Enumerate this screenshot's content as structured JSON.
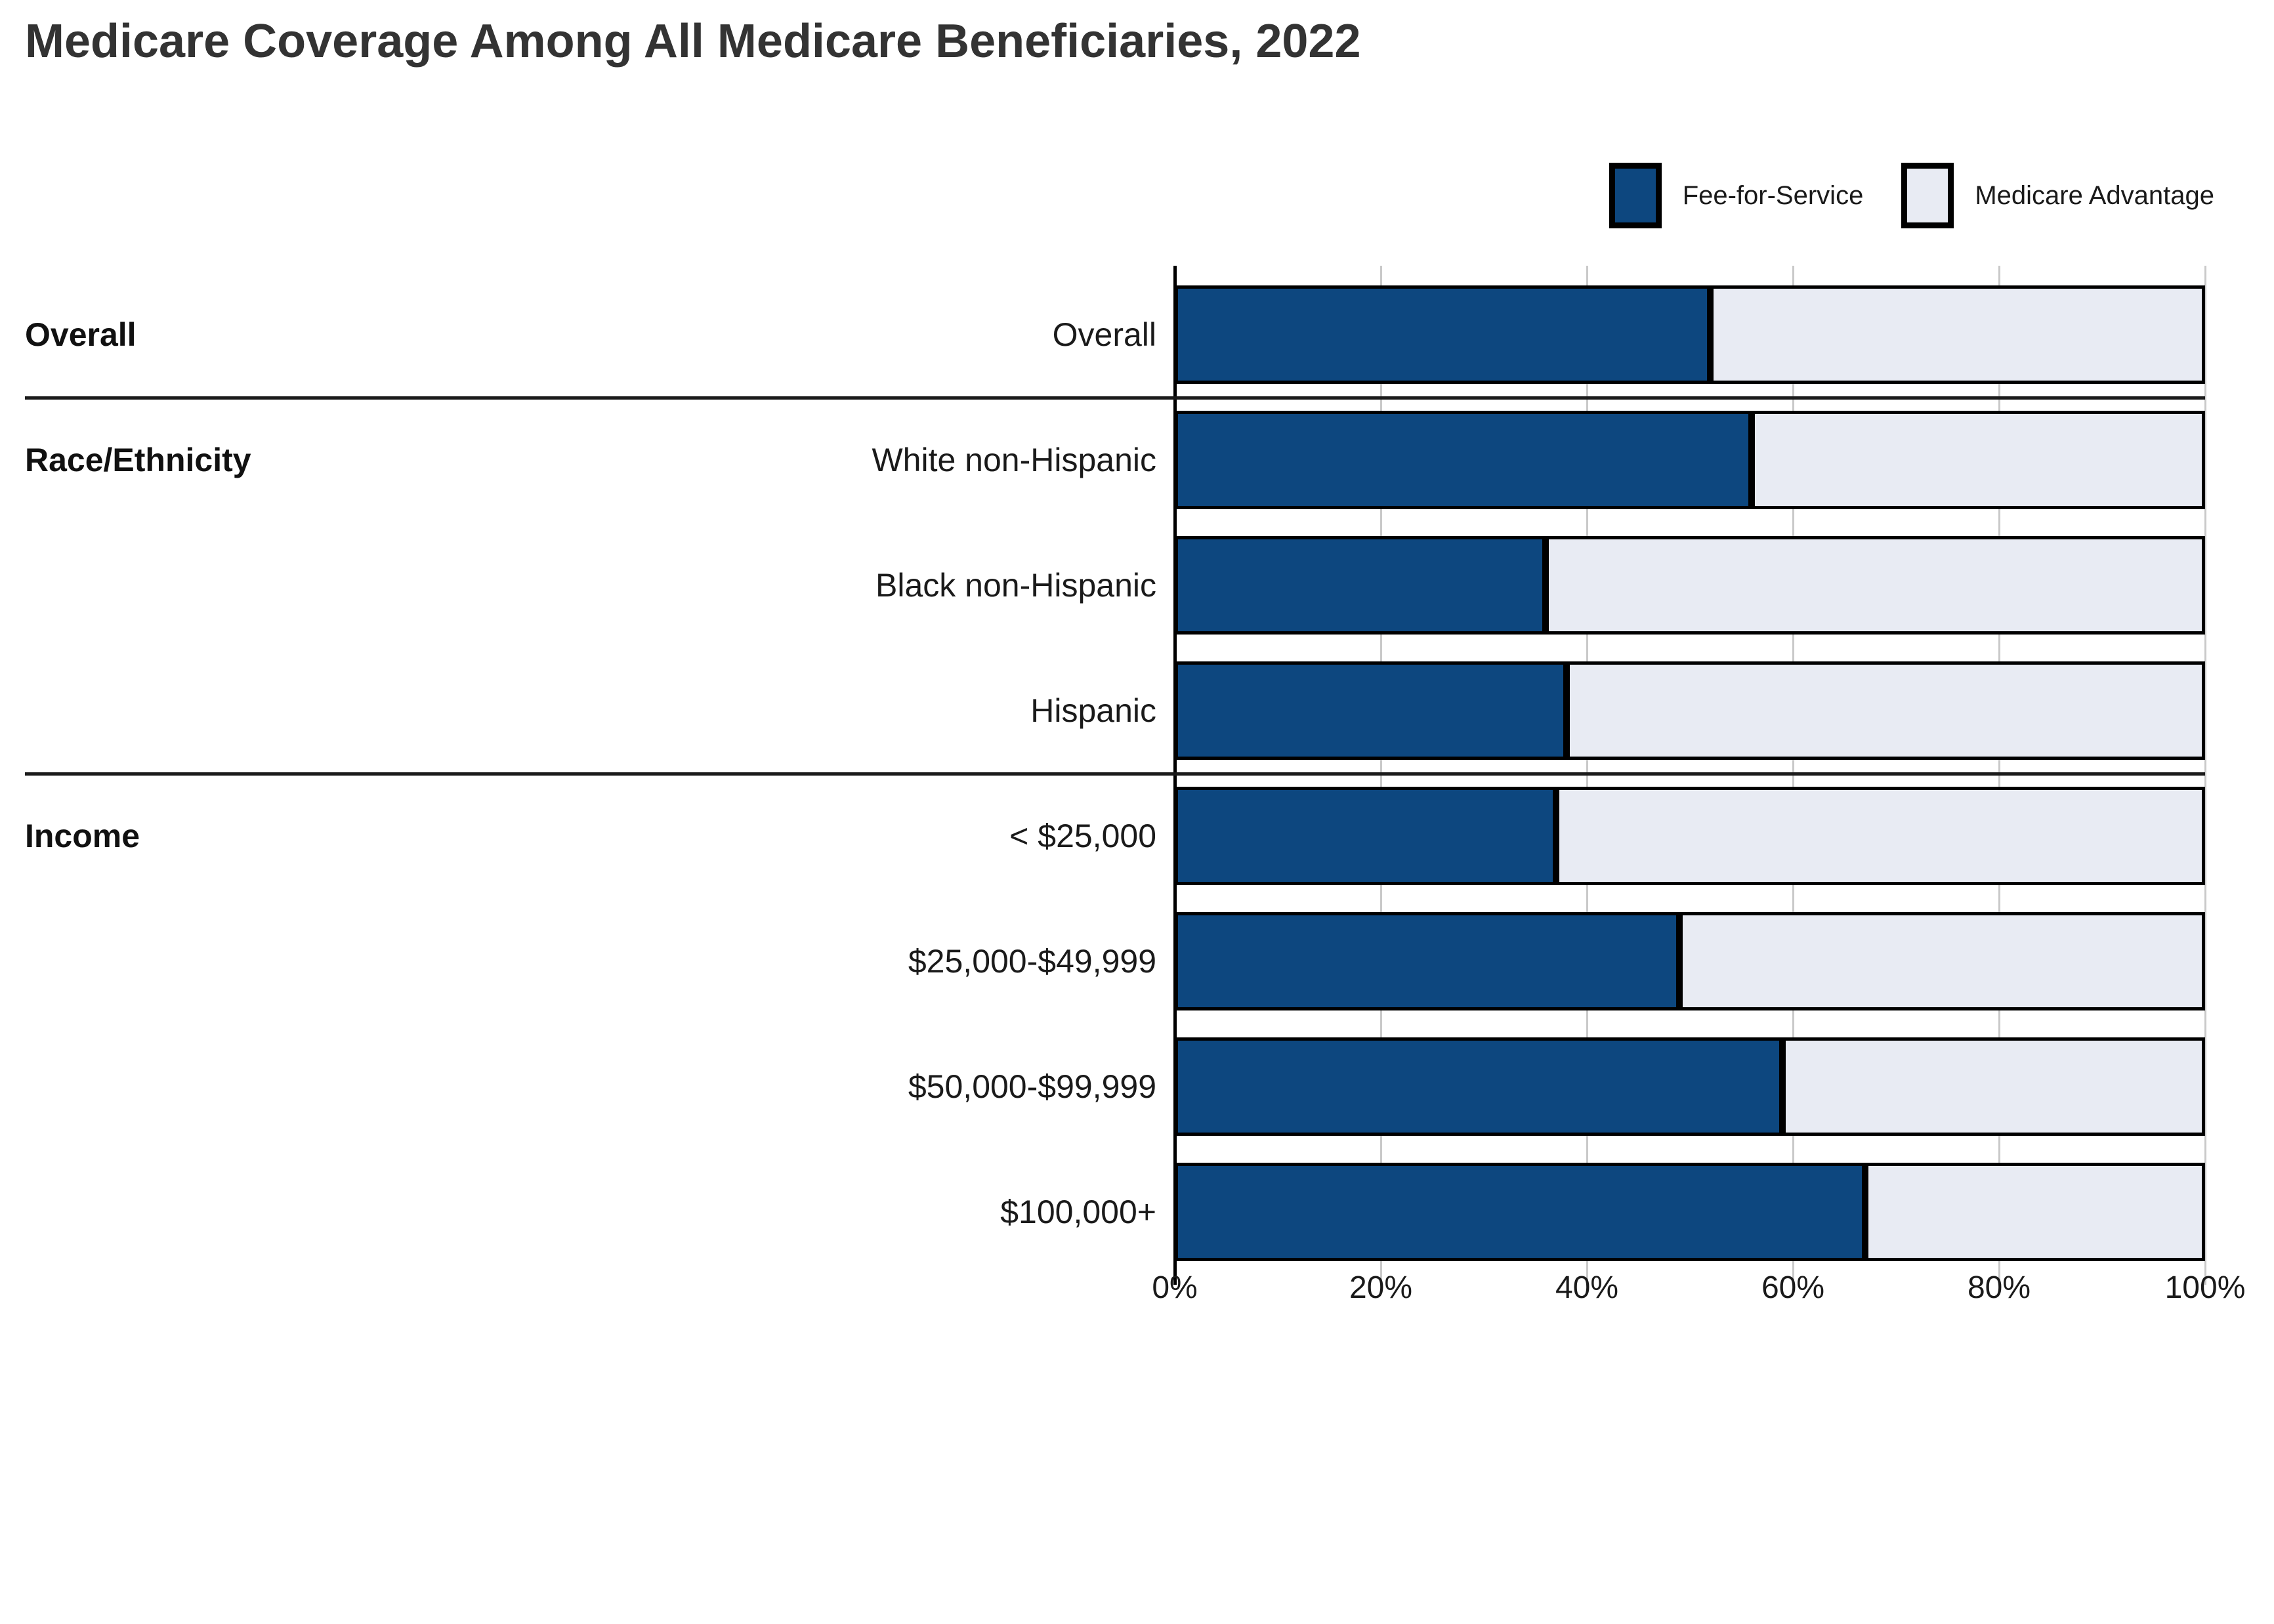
{
  "title": "Medicare Coverage Among All Medicare Beneficiaries, 2022",
  "legend": [
    {
      "label": "Fee-for-Service",
      "color": "#0D477F"
    },
    {
      "label": "Medicare Advantage",
      "color": "#E8EBF3"
    }
  ],
  "colors": {
    "fee_for_service": "#0D477F",
    "medicare_advantage": "#E8EBF3",
    "bar_border": "#000000",
    "gridline": "#c9c9c9",
    "text": "#1a1a1a",
    "title": "#333333"
  },
  "chart_data": {
    "type": "bar",
    "orientation": "horizontal",
    "stacked": true,
    "title": "Medicare Coverage Among All Medicare Beneficiaries, 2022",
    "xlabel": "",
    "ylabel": "",
    "x_range": [
      0,
      100
    ],
    "x_ticks": [
      "0%",
      "20%",
      "40%",
      "60%",
      "80%",
      "100%"
    ],
    "grid": true,
    "legend_position": "top-right",
    "groups": [
      {
        "label": "Overall",
        "rows": [
          "Overall"
        ]
      },
      {
        "label": "Race/Ethnicity",
        "rows": [
          "White non-Hispanic",
          "Black non-Hispanic",
          "Hispanic"
        ]
      },
      {
        "label": "Income",
        "rows": [
          "< $25,000",
          "$25,000-$49,999",
          "$50,000-$99,999",
          "$100,000+"
        ]
      }
    ],
    "categories": [
      "Overall",
      "White non-Hispanic",
      "Black non-Hispanic",
      "Hispanic",
      "< $25,000",
      "$25,000-$49,999",
      "$50,000-$99,999",
      "$100,000+"
    ],
    "series": [
      {
        "name": "Fee-for-Service",
        "color": "#0D477F",
        "values": [
          52,
          56,
          36,
          38,
          37,
          49,
          59,
          67
        ]
      },
      {
        "name": "Medicare Advantage",
        "color": "#E8EBF3",
        "values": [
          48,
          44,
          64,
          62,
          63,
          51,
          41,
          33
        ]
      }
    ]
  }
}
